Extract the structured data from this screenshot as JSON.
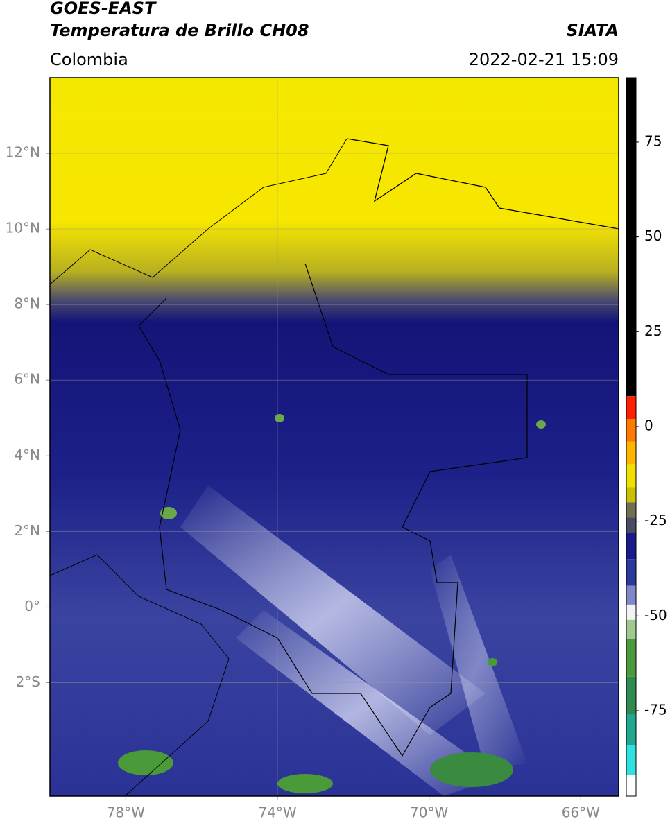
{
  "map": {
    "title": "GOES-EAST",
    "subtitle": "Temperatura de Brillo CH08",
    "agency": "SIATA",
    "region": "Colombia",
    "datetime": "2022-02-21 15:09",
    "xlim": [
      -80,
      -65
    ],
    "ylim": [
      -5,
      14
    ],
    "xticks": [
      {
        "value": -78,
        "label": "78°W"
      },
      {
        "value": -74,
        "label": "74°W"
      },
      {
        "value": -70,
        "label": "70°W"
      },
      {
        "value": -66,
        "label": "66°W"
      }
    ],
    "yticks": [
      {
        "value": 12,
        "label": "12°N"
      },
      {
        "value": 10,
        "label": "10°N"
      },
      {
        "value": 8,
        "label": "8°N"
      },
      {
        "value": 6,
        "label": "6°N"
      },
      {
        "value": 4,
        "label": "4°N"
      },
      {
        "value": 2,
        "label": "2°N"
      },
      {
        "value": 0,
        "label": "0°"
      },
      {
        "value": -2,
        "label": "2°S"
      }
    ],
    "grid": true,
    "colorbar": {
      "lim": [
        -97.5,
        92
      ],
      "ticks": [
        75,
        50,
        25,
        0,
        -25,
        -50,
        -75
      ],
      "segments": [
        {
          "from": 8,
          "to": 92,
          "color": "#000000"
        },
        {
          "from": 2,
          "to": 8,
          "color": "#ff2000"
        },
        {
          "from": -4,
          "to": 2,
          "color": "#ff7a00"
        },
        {
          "from": -10,
          "to": -4,
          "color": "#ffb400"
        },
        {
          "from": -16,
          "to": -10,
          "color": "#f0e000"
        },
        {
          "from": -20,
          "to": -16,
          "color": "#c8c000"
        },
        {
          "from": -24,
          "to": -20,
          "color": "#707050"
        },
        {
          "from": -28,
          "to": -24,
          "color": "#4a4a60"
        },
        {
          "from": -35,
          "to": -28,
          "color": "#1a1a8a"
        },
        {
          "from": -42,
          "to": -35,
          "color": "#2a3a9a"
        },
        {
          "from": -47,
          "to": -42,
          "color": "#8088c8"
        },
        {
          "from": -51,
          "to": -47,
          "color": "#f2f2f2"
        },
        {
          "from": -56,
          "to": -51,
          "color": "#a0c890"
        },
        {
          "from": -66,
          "to": -56,
          "color": "#4a9a3a"
        },
        {
          "from": -76,
          "to": -66,
          "color": "#2e8a50"
        },
        {
          "from": -84,
          "to": -76,
          "color": "#20a890"
        },
        {
          "from": -92,
          "to": -84,
          "color": "#30e0e0"
        },
        {
          "from": -97.5,
          "to": -92,
          "color": "#ffffff"
        }
      ]
    }
  }
}
